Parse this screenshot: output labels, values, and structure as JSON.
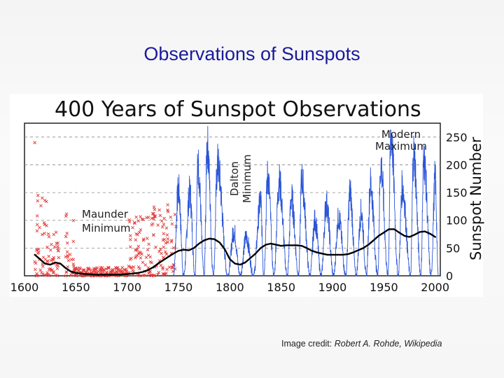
{
  "slide": {
    "title": "Observations of Sunspots",
    "credit_prefix": "Image credit: ",
    "credit_text": "Robert A. Rohde, Wikipedia"
  },
  "chart_data": {
    "type": "line",
    "title": "400 Years of Sunspot Observations",
    "xlabel": "",
    "ylabel": "Sunspot Number",
    "xlim": [
      1600,
      2005
    ],
    "ylim": [
      0,
      275
    ],
    "x_ticks": [
      1600,
      1650,
      1700,
      1750,
      1800,
      1850,
      1900,
      1950,
      2000
    ],
    "y_ticks": [
      0,
      50,
      100,
      150,
      200,
      250
    ],
    "grid": "horizontal dashed",
    "annotations": [
      {
        "lines": [
          "Maunder",
          "Minimum"
        ],
        "x": 1652,
        "y": 110
      },
      {
        "lines": [
          "Dalton",
          "Minimum"
        ],
        "x": 1808,
        "y": 175,
        "rotated": true
      },
      {
        "lines": [
          "Modern",
          "Maximum"
        ],
        "x": 1955,
        "y": 245
      }
    ],
    "series": [
      {
        "kind": "smoothed",
        "color": "#000000",
        "x": [
          1610,
          1615,
          1620,
          1625,
          1630,
          1635,
          1640,
          1645,
          1650,
          1660,
          1670,
          1680,
          1690,
          1700,
          1705,
          1710,
          1715,
          1720,
          1725,
          1730,
          1735,
          1740,
          1745,
          1750,
          1755,
          1760,
          1765,
          1770,
          1775,
          1780,
          1785,
          1790,
          1795,
          1800,
          1805,
          1810,
          1815,
          1820,
          1825,
          1830,
          1835,
          1840,
          1845,
          1850,
          1855,
          1860,
          1865,
          1870,
          1875,
          1880,
          1885,
          1890,
          1895,
          1900,
          1905,
          1910,
          1915,
          1920,
          1925,
          1930,
          1935,
          1940,
          1945,
          1950,
          1955,
          1960,
          1965,
          1970,
          1975,
          1980,
          1985,
          1990,
          1995,
          2000
        ],
        "values": [
          38,
          30,
          22,
          20,
          24,
          22,
          14,
          8,
          5,
          3,
          2,
          2,
          2,
          3,
          4,
          5,
          7,
          10,
          15,
          22,
          28,
          34,
          40,
          45,
          47,
          46,
          50,
          58,
          64,
          67,
          66,
          60,
          48,
          30,
          22,
          20,
          24,
          32,
          40,
          50,
          56,
          58,
          56,
          54,
          55,
          55,
          55,
          54,
          50,
          45,
          42,
          40,
          38,
          38,
          38,
          38,
          39,
          42,
          46,
          50,
          56,
          64,
          72,
          78,
          84,
          84,
          78,
          72,
          70,
          74,
          79,
          80,
          76,
          70
        ]
      },
      {
        "kind": "monthly",
        "color": "#2a55d8",
        "cycle_peaks": [
          {
            "year": 1750,
            "value": 155
          },
          {
            "year": 1761,
            "value": 150
          },
          {
            "year": 1769,
            "value": 200
          },
          {
            "year": 1778,
            "value": 240
          },
          {
            "year": 1788,
            "value": 200
          },
          {
            "year": 1804,
            "value": 80
          },
          {
            "year": 1816,
            "value": 70
          },
          {
            "year": 1830,
            "value": 135
          },
          {
            "year": 1837,
            "value": 180
          },
          {
            "year": 1848,
            "value": 170
          },
          {
            "year": 1860,
            "value": 140
          },
          {
            "year": 1870,
            "value": 175
          },
          {
            "year": 1883,
            "value": 100
          },
          {
            "year": 1894,
            "value": 130
          },
          {
            "year": 1906,
            "value": 105
          },
          {
            "year": 1917,
            "value": 150
          },
          {
            "year": 1928,
            "value": 115
          },
          {
            "year": 1937,
            "value": 165
          },
          {
            "year": 1947,
            "value": 200
          },
          {
            "year": 1957,
            "value": 255
          },
          {
            "year": 1968,
            "value": 160
          },
          {
            "year": 1979,
            "value": 220
          },
          {
            "year": 1989,
            "value": 210
          },
          {
            "year": 2000,
            "value": 175
          }
        ],
        "cycle_minima": [
          1745,
          1755,
          1766,
          1775,
          1784,
          1798,
          1810,
          1823,
          1833,
          1843,
          1856,
          1867,
          1878,
          1889,
          1901,
          1913,
          1923,
          1933,
          1944,
          1954,
          1964,
          1976,
          1986,
          1996,
          2003
        ]
      },
      {
        "kind": "early_observations",
        "color": "#e23a3a",
        "marker": "x",
        "clusters": [
          {
            "from": 1610,
            "to": 1622,
            "range": [
              0,
              160
            ]
          },
          {
            "from": 1622,
            "to": 1635,
            "range": [
              0,
              80
            ]
          },
          {
            "from": 1640,
            "to": 1648,
            "range": [
              0,
              130
            ]
          },
          {
            "from": 1648,
            "to": 1700,
            "range": [
              0,
              15
            ]
          },
          {
            "from": 1700,
            "to": 1722,
            "range": [
              0,
              110
            ]
          },
          {
            "from": 1722,
            "to": 1748,
            "range": [
              0,
              130
            ]
          }
        ],
        "outlier": {
          "year": 1610,
          "value": 240
        }
      }
    ]
  }
}
